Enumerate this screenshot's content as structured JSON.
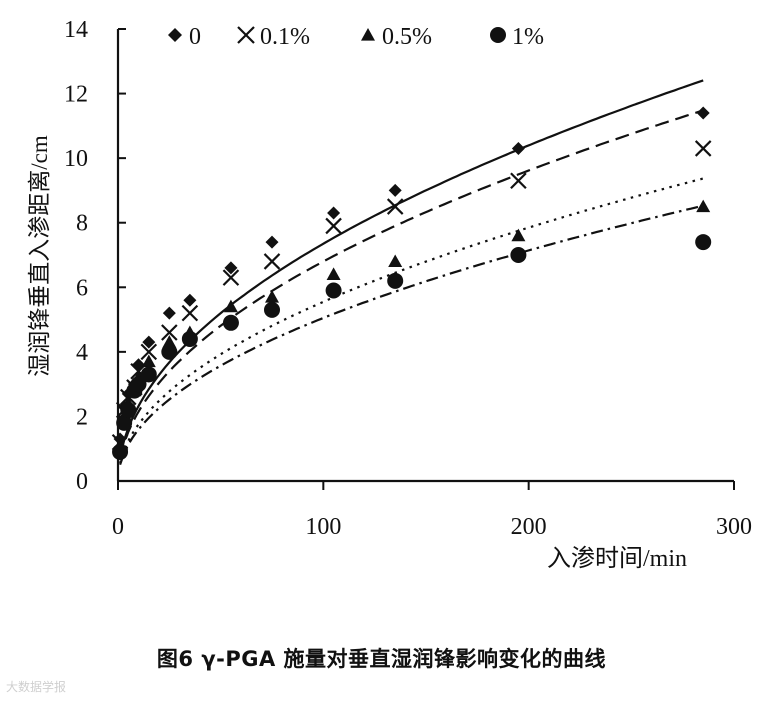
{
  "chart_data": {
    "type": "scatter",
    "title": "",
    "xlabel": "入渗时间/min",
    "ylabel": "湿润锋垂直入渗距离/cm",
    "xlim": [
      0,
      300
    ],
    "ylim": [
      0,
      14
    ],
    "x_ticks": [
      0,
      100,
      200,
      300
    ],
    "y_ticks": [
      0,
      2,
      4,
      6,
      8,
      10,
      12,
      14
    ],
    "grid": false,
    "legend_position": "top",
    "series": [
      {
        "name": "0",
        "marker": "diamond",
        "line_style": "solid",
        "x": [
          1,
          3,
          5,
          8,
          10,
          15,
          25,
          35,
          55,
          75,
          105,
          135,
          195,
          285
        ],
        "y": [
          1.3,
          2.3,
          2.7,
          3.0,
          3.6,
          4.3,
          5.2,
          5.6,
          6.6,
          7.4,
          8.3,
          9.0,
          10.3,
          11.4
        ],
        "fit_coef": 0.735
      },
      {
        "name": "0.1%",
        "marker": "cross",
        "line_style": "dashed",
        "x": [
          1,
          3,
          5,
          8,
          10,
          15,
          25,
          35,
          55,
          75,
          105,
          135,
          195,
          285
        ],
        "y": [
          1.2,
          2.2,
          2.6,
          2.9,
          3.4,
          4.0,
          4.6,
          5.2,
          6.3,
          6.8,
          7.9,
          8.5,
          9.3,
          10.3
        ],
        "fit_coef": 0.68
      },
      {
        "name": "0.5%",
        "marker": "triangle",
        "line_style": "dotted",
        "x": [
          1,
          3,
          5,
          8,
          10,
          15,
          25,
          35,
          55,
          75,
          105,
          135,
          195,
          285
        ],
        "y": [
          1.0,
          2.0,
          2.4,
          2.8,
          3.2,
          3.7,
          4.3,
          4.6,
          5.4,
          5.7,
          6.4,
          6.8,
          7.6,
          8.5
        ],
        "fit_coef": 0.555
      },
      {
        "name": "1%",
        "marker": "circle",
        "line_style": "dashdot",
        "x": [
          1,
          3,
          5,
          8,
          10,
          15,
          25,
          35,
          55,
          75,
          105,
          135,
          195,
          285
        ],
        "y": [
          0.9,
          1.8,
          2.2,
          2.8,
          3.0,
          3.3,
          4.0,
          4.4,
          4.9,
          5.3,
          5.9,
          6.2,
          7.0,
          7.4
        ],
        "fit_coef": 0.505
      }
    ]
  },
  "caption": "图6 γ-PGA 施量对垂直湿润锋影响变化的曲线",
  "watermark": "大数据学报"
}
